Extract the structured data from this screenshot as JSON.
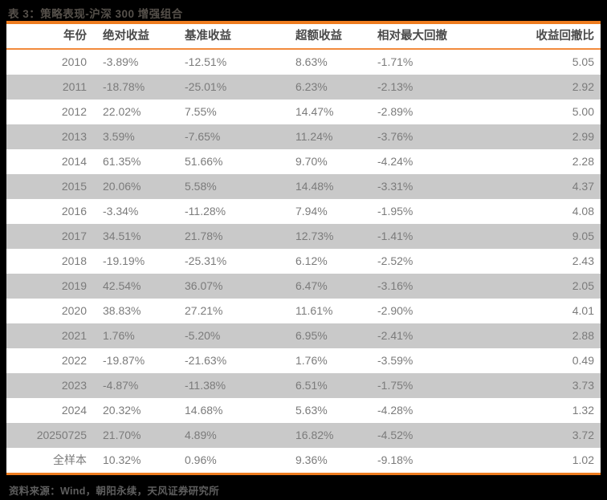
{
  "title": "表 3：策略表现-沪深 300 增强组合",
  "source": "资料来源：Wind，朝阳永续，天风证券研究所",
  "colors": {
    "accent_orange": "#EE7C1F",
    "header_underline_orange": "#F28A3C",
    "stripe_gray": "#C9C9C9",
    "row_white": "#FFFFFF",
    "page_background": "#000000",
    "header_text": "#4A4A4A",
    "body_text": "#7B7B7B"
  },
  "table": {
    "columns": [
      "年份",
      "绝对收益",
      "基准收益",
      "超额收益",
      "相对最大回撤",
      "收益回撤比"
    ],
    "rows": [
      [
        "2010",
        "-3.89%",
        "-12.51%",
        "8.63%",
        "-1.71%",
        "5.05"
      ],
      [
        "2011",
        "-18.78%",
        "-25.01%",
        "6.23%",
        "-2.13%",
        "2.92"
      ],
      [
        "2012",
        "22.02%",
        "7.55%",
        "14.47%",
        "-2.89%",
        "5.00"
      ],
      [
        "2013",
        "3.59%",
        "-7.65%",
        "11.24%",
        "-3.76%",
        "2.99"
      ],
      [
        "2014",
        "61.35%",
        "51.66%",
        "9.70%",
        "-4.24%",
        "2.28"
      ],
      [
        "2015",
        "20.06%",
        "5.58%",
        "14.48%",
        "-3.31%",
        "4.37"
      ],
      [
        "2016",
        "-3.34%",
        "-11.28%",
        "7.94%",
        "-1.95%",
        "4.08"
      ],
      [
        "2017",
        "34.51%",
        "21.78%",
        "12.73%",
        "-1.41%",
        "9.05"
      ],
      [
        "2018",
        "-19.19%",
        "-25.31%",
        "6.12%",
        "-2.52%",
        "2.43"
      ],
      [
        "2019",
        "42.54%",
        "36.07%",
        "6.47%",
        "-3.16%",
        "2.05"
      ],
      [
        "2020",
        "38.83%",
        "27.21%",
        "11.61%",
        "-2.90%",
        "4.01"
      ],
      [
        "2021",
        "1.76%",
        "-5.20%",
        "6.95%",
        "-2.41%",
        "2.88"
      ],
      [
        "2022",
        "-19.87%",
        "-21.63%",
        "1.76%",
        "-3.59%",
        "0.49"
      ],
      [
        "2023",
        "-4.87%",
        "-11.38%",
        "6.51%",
        "-1.75%",
        "3.73"
      ],
      [
        "2024",
        "20.32%",
        "14.68%",
        "5.63%",
        "-4.28%",
        "1.32"
      ],
      [
        "20250725",
        "21.70%",
        "4.89%",
        "16.82%",
        "-4.52%",
        "3.72"
      ],
      [
        "全样本",
        "10.32%",
        "0.96%",
        "9.36%",
        "-9.18%",
        "1.02"
      ]
    ]
  }
}
